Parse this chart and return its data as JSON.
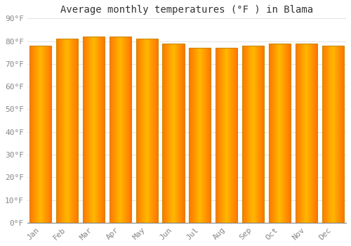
{
  "title": "Average monthly temperatures (°F ) in Blama",
  "months": [
    "Jan",
    "Feb",
    "Mar",
    "Apr",
    "May",
    "Jun",
    "Jul",
    "Aug",
    "Sep",
    "Oct",
    "Nov",
    "Dec"
  ],
  "values": [
    78,
    81,
    82,
    82,
    81,
    79,
    77,
    77,
    78,
    79,
    79,
    78
  ],
  "ylim": [
    0,
    90
  ],
  "yticks": [
    0,
    10,
    20,
    30,
    40,
    50,
    60,
    70,
    80,
    90
  ],
  "ytick_labels": [
    "0°F",
    "10°F",
    "20°F",
    "30°F",
    "40°F",
    "50°F",
    "60°F",
    "70°F",
    "80°F",
    "90°F"
  ],
  "bar_color_left": "#FF8800",
  "bar_color_center": "#FFB800",
  "bar_color_right": "#E89000",
  "bar_border_color": "#CC8800",
  "background_color": "#FFFFFF",
  "grid_color": "#DDDDDD",
  "title_fontsize": 10,
  "tick_fontsize": 8,
  "title_color": "#333333",
  "tick_color": "#888888"
}
